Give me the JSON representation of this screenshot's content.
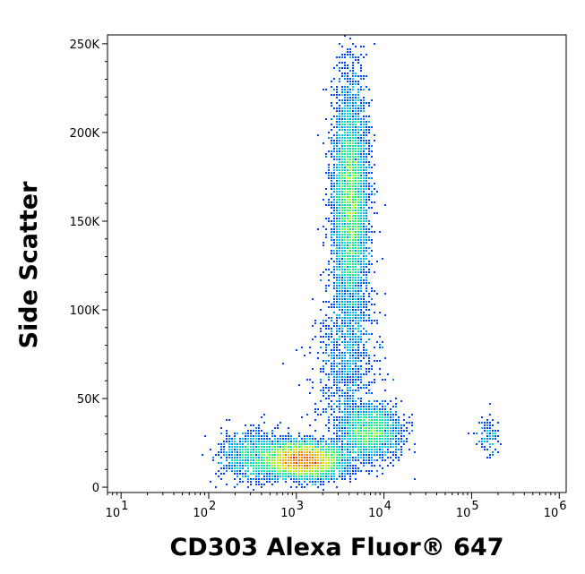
{
  "chart_data": {
    "type": "scatter",
    "plot_style": "density dot plot (flow cytometry)",
    "xlabel": "CD303 Alexa Fluor® 647",
    "ylabel": "Side Scatter",
    "x_scale": "log",
    "xlim": [
      7,
      1200000
    ],
    "ylim": [
      -3000,
      255000
    ],
    "x_ticks": [
      {
        "value": 10,
        "base": "10",
        "exp": "1"
      },
      {
        "value": 100,
        "base": "10",
        "exp": "2"
      },
      {
        "value": 1000,
        "base": "10",
        "exp": "3"
      },
      {
        "value": 10000,
        "base": "10",
        "exp": "4"
      },
      {
        "value": 100000,
        "base": "10",
        "exp": "5"
      },
      {
        "value": 1000000,
        "base": "10",
        "exp": "6"
      }
    ],
    "y_ticks": [
      {
        "value": 0,
        "label": "0"
      },
      {
        "value": 50000,
        "label": "50K"
      },
      {
        "value": 100000,
        "label": "100K"
      },
      {
        "value": 150000,
        "label": "150K"
      },
      {
        "value": 200000,
        "label": "200K"
      },
      {
        "value": 250000,
        "label": "250K"
      }
    ],
    "populations": [
      {
        "center_x": 1200,
        "center_y": 15000,
        "spread_log_x": 0.23,
        "spread_y": 5000,
        "count": 5500,
        "peak_density": "high"
      },
      {
        "center_x": 4200,
        "center_y": 160000,
        "spread_log_x": 0.1,
        "spread_y": 35000,
        "count": 5000,
        "peak_density": "high"
      },
      {
        "center_x": 7000,
        "center_y": 31000,
        "spread_log_x": 0.17,
        "spread_y": 7500,
        "count": 1800,
        "peak_density": "medium"
      },
      {
        "center_x": 3800,
        "center_y": 70000,
        "spread_log_x": 0.18,
        "spread_y": 22000,
        "count": 900,
        "peak_density": "low"
      },
      {
        "center_x": 300,
        "center_y": 18000,
        "spread_log_x": 0.18,
        "spread_y": 7000,
        "count": 900,
        "peak_density": "low"
      },
      {
        "center_x": 160000,
        "center_y": 28000,
        "spread_log_x": 0.07,
        "spread_y": 5000,
        "count": 110,
        "peak_density": "low"
      }
    ],
    "color_scale": [
      "#0000ff",
      "#00c8ff",
      "#00ff80",
      "#c8ff00",
      "#ffa000",
      "#ff0000"
    ],
    "grid": false,
    "legend": "none"
  }
}
